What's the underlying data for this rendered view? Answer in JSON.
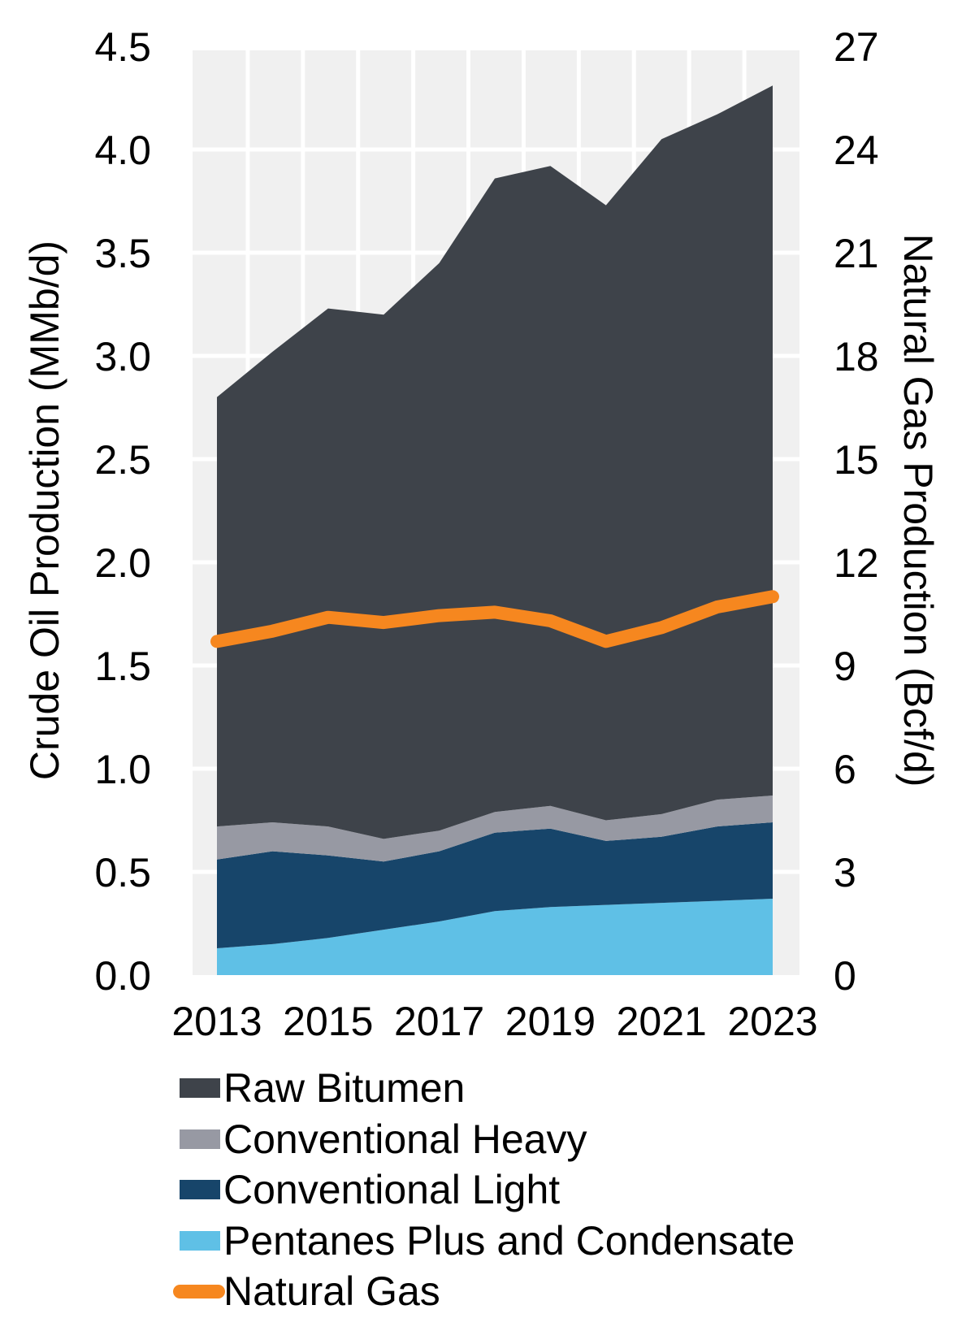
{
  "chart_data": {
    "type": "area",
    "subtype": "stacked-area-with-line-overlay",
    "x": [
      2013,
      2014,
      2015,
      2016,
      2017,
      2018,
      2019,
      2020,
      2021,
      2022,
      2023
    ],
    "x_tick_labels": [
      "2013",
      "2015",
      "2017",
      "2019",
      "2021",
      "2023"
    ],
    "left_axis": {
      "title": "Crude Oil Production (MMb/d)",
      "min": 0,
      "max": 4.5,
      "ticks": [
        "0.0",
        "0.5",
        "1.0",
        "1.5",
        "2.0",
        "2.5",
        "3.0",
        "3.5",
        "4.0",
        "4.5"
      ]
    },
    "right_axis": {
      "title": "Natural Gas Production (Bcf/d)",
      "min": 0,
      "max": 27,
      "ticks": [
        "0",
        "3",
        "6",
        "9",
        "12",
        "15",
        "18",
        "21",
        "24",
        "27"
      ]
    },
    "stacked_series": [
      {
        "name": "Pentanes Plus and Condensate",
        "color": "#5fc0e6",
        "values": [
          0.13,
          0.15,
          0.18,
          0.22,
          0.26,
          0.31,
          0.33,
          0.34,
          0.35,
          0.36,
          0.37
        ]
      },
      {
        "name": "Conventional Light",
        "color": "#17456a",
        "values": [
          0.43,
          0.45,
          0.4,
          0.33,
          0.34,
          0.38,
          0.38,
          0.31,
          0.32,
          0.36,
          0.37
        ]
      },
      {
        "name": "Conventional Heavy",
        "color": "#9799a3",
        "values": [
          0.16,
          0.14,
          0.14,
          0.11,
          0.1,
          0.1,
          0.11,
          0.1,
          0.11,
          0.13,
          0.13
        ]
      },
      {
        "name": "Raw Bitumen",
        "color": "#3e434a",
        "values": [
          2.08,
          2.28,
          2.51,
          2.54,
          2.75,
          3.07,
          3.1,
          2.98,
          3.27,
          3.32,
          3.44
        ]
      }
    ],
    "stacked_totals": [
      2.8,
      3.02,
      3.23,
      3.2,
      3.45,
      3.86,
      3.92,
      3.73,
      4.05,
      4.17,
      4.31
    ],
    "line_series": [
      {
        "name": "Natural Gas",
        "color": "#f6871f",
        "axis": "right",
        "values": [
          9.7,
          10.0,
          10.4,
          10.25,
          10.45,
          10.55,
          10.3,
          9.7,
          10.1,
          10.7,
          11.0
        ]
      }
    ],
    "legend": [
      {
        "label": "Raw Bitumen",
        "color": "#3e434a",
        "marker": "box"
      },
      {
        "label": "Conventional Heavy",
        "color": "#9799a3",
        "marker": "box"
      },
      {
        "label": "Conventional Light",
        "color": "#17456a",
        "marker": "box"
      },
      {
        "label": "Pentanes Plus and Condensate",
        "color": "#5fc0e6",
        "marker": "box"
      },
      {
        "label": "Natural Gas",
        "color": "#f6871f",
        "marker": "line"
      }
    ],
    "legend_position": "bottom-left",
    "grid": true,
    "plot_background": "#f0f0f0",
    "gridline_color": "#ffffff",
    "text_color": "#000000"
  }
}
